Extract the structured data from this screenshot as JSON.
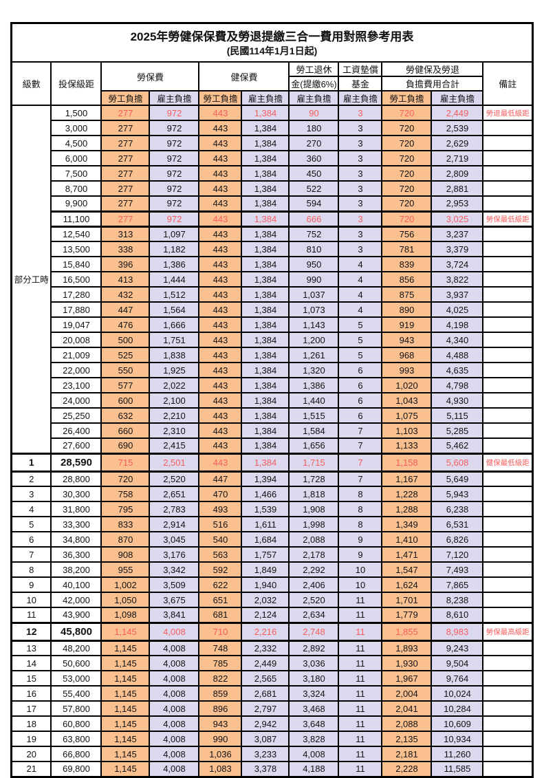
{
  "title": "2025年勞健保保費及勞退提繳三合一費用對照參考用表",
  "subtitle": "(民國114年1月1日起)",
  "colors": {
    "employee_column_bg": "#FAC090",
    "employer_column_bg": "#DCD8EE",
    "highlight_text": "#F75D5D",
    "grid": "#000000"
  },
  "header": {
    "col_level": "級數",
    "col_bracket": "投保級距",
    "group_labor": "勞保費",
    "group_health": "健保費",
    "group_pension_l1": "勞工退休",
    "group_pension_l2": "金(提繳6%)",
    "group_wage_fund_l1": "工資墊償",
    "group_wage_fund_l2": "基金",
    "group_total_l1": "勞健保及勞退",
    "group_total_l2": "負擔費用合計",
    "col_remark": "備註",
    "sub_employee": "勞工負擔",
    "sub_employer": "雇主負擔"
  },
  "part_time": {
    "label": "部分工時",
    "row_count": 23
  },
  "rows": [
    {
      "bracket": "1,500",
      "values": [
        "277",
        "972",
        "443",
        "1,384",
        "90",
        "3",
        "720",
        "2,449"
      ],
      "remark": "勞退最低級距",
      "red": true
    },
    {
      "bracket": "3,000",
      "values": [
        "277",
        "972",
        "443",
        "1,384",
        "180",
        "3",
        "720",
        "2,539"
      ]
    },
    {
      "bracket": "4,500",
      "values": [
        "277",
        "972",
        "443",
        "1,384",
        "270",
        "3",
        "720",
        "2,629"
      ]
    },
    {
      "bracket": "6,000",
      "values": [
        "277",
        "972",
        "443",
        "1,384",
        "360",
        "3",
        "720",
        "2,719"
      ]
    },
    {
      "bracket": "7,500",
      "values": [
        "277",
        "972",
        "443",
        "1,384",
        "450",
        "3",
        "720",
        "2,809"
      ]
    },
    {
      "bracket": "8,700",
      "values": [
        "277",
        "972",
        "443",
        "1,384",
        "522",
        "3",
        "720",
        "2,881"
      ]
    },
    {
      "bracket": "9,900",
      "values": [
        "277",
        "972",
        "443",
        "1,384",
        "594",
        "3",
        "720",
        "2,953"
      ]
    },
    {
      "bracket": "11,100",
      "values": [
        "277",
        "972",
        "443",
        "1,384",
        "666",
        "3",
        "720",
        "3,025"
      ],
      "remark": "勞保最低級距",
      "red": true,
      "thick": true
    },
    {
      "bracket": "12,540",
      "values": [
        "313",
        "1,097",
        "443",
        "1,384",
        "752",
        "3",
        "756",
        "3,237"
      ]
    },
    {
      "bracket": "13,500",
      "values": [
        "338",
        "1,182",
        "443",
        "1,384",
        "810",
        "3",
        "781",
        "3,379"
      ]
    },
    {
      "bracket": "15,840",
      "values": [
        "396",
        "1,386",
        "443",
        "1,384",
        "950",
        "4",
        "839",
        "3,724"
      ]
    },
    {
      "bracket": "16,500",
      "values": [
        "413",
        "1,444",
        "443",
        "1,384",
        "990",
        "4",
        "856",
        "3,822"
      ]
    },
    {
      "bracket": "17,280",
      "values": [
        "432",
        "1,512",
        "443",
        "1,384",
        "1,037",
        "4",
        "875",
        "3,937"
      ]
    },
    {
      "bracket": "17,880",
      "values": [
        "447",
        "1,564",
        "443",
        "1,384",
        "1,073",
        "4",
        "890",
        "4,025"
      ]
    },
    {
      "bracket": "19,047",
      "values": [
        "476",
        "1,666",
        "443",
        "1,384",
        "1,143",
        "5",
        "919",
        "4,198"
      ]
    },
    {
      "bracket": "20,008",
      "values": [
        "500",
        "1,751",
        "443",
        "1,384",
        "1,200",
        "5",
        "943",
        "4,340"
      ]
    },
    {
      "bracket": "21,009",
      "values": [
        "525",
        "1,838",
        "443",
        "1,384",
        "1,261",
        "5",
        "968",
        "4,488"
      ]
    },
    {
      "bracket": "22,000",
      "values": [
        "550",
        "1,925",
        "443",
        "1,384",
        "1,320",
        "6",
        "993",
        "4,635"
      ]
    },
    {
      "bracket": "23,100",
      "values": [
        "577",
        "2,022",
        "443",
        "1,384",
        "1,386",
        "6",
        "1,020",
        "4,798"
      ]
    },
    {
      "bracket": "24,000",
      "values": [
        "600",
        "2,100",
        "443",
        "1,384",
        "1,440",
        "6",
        "1,043",
        "4,930"
      ]
    },
    {
      "bracket": "25,250",
      "values": [
        "632",
        "2,210",
        "443",
        "1,384",
        "1,515",
        "6",
        "1,075",
        "5,115"
      ]
    },
    {
      "bracket": "26,400",
      "values": [
        "660",
        "2,310",
        "443",
        "1,384",
        "1,584",
        "7",
        "1,103",
        "5,285"
      ]
    },
    {
      "bracket": "27,600",
      "values": [
        "690",
        "2,415",
        "443",
        "1,384",
        "1,656",
        "7",
        "1,133",
        "5,462"
      ]
    },
    {
      "level": "1",
      "bracket": "28,590",
      "values": [
        "715",
        "2,501",
        "443",
        "1,384",
        "1,715",
        "7",
        "1,158",
        "5,608"
      ],
      "remark": "健保最低級距",
      "red": true,
      "thick": true,
      "bold": true
    },
    {
      "level": "2",
      "bracket": "28,800",
      "values": [
        "720",
        "2,520",
        "447",
        "1,394",
        "1,728",
        "7",
        "1,167",
        "5,649"
      ]
    },
    {
      "level": "3",
      "bracket": "30,300",
      "values": [
        "758",
        "2,651",
        "470",
        "1,466",
        "1,818",
        "8",
        "1,228",
        "5,943"
      ]
    },
    {
      "level": "4",
      "bracket": "31,800",
      "values": [
        "795",
        "2,783",
        "493",
        "1,539",
        "1,908",
        "8",
        "1,288",
        "6,238"
      ]
    },
    {
      "level": "5",
      "bracket": "33,300",
      "values": [
        "833",
        "2,914",
        "516",
        "1,611",
        "1,998",
        "8",
        "1,349",
        "6,531"
      ]
    },
    {
      "level": "6",
      "bracket": "34,800",
      "values": [
        "870",
        "3,045",
        "540",
        "1,684",
        "2,088",
        "9",
        "1,410",
        "6,826"
      ]
    },
    {
      "level": "7",
      "bracket": "36,300",
      "values": [
        "908",
        "3,176",
        "563",
        "1,757",
        "2,178",
        "9",
        "1,471",
        "7,120"
      ]
    },
    {
      "level": "8",
      "bracket": "38,200",
      "values": [
        "955",
        "3,342",
        "592",
        "1,849",
        "2,292",
        "10",
        "1,547",
        "7,493"
      ]
    },
    {
      "level": "9",
      "bracket": "40,100",
      "values": [
        "1,002",
        "3,509",
        "622",
        "1,940",
        "2,406",
        "10",
        "1,624",
        "7,865"
      ]
    },
    {
      "level": "10",
      "bracket": "42,000",
      "values": [
        "1,050",
        "3,675",
        "651",
        "2,032",
        "2,520",
        "11",
        "1,701",
        "8,238"
      ]
    },
    {
      "level": "11",
      "bracket": "43,900",
      "values": [
        "1,098",
        "3,841",
        "681",
        "2,124",
        "2,634",
        "11",
        "1,779",
        "8,610"
      ]
    },
    {
      "level": "12",
      "bracket": "45,800",
      "values": [
        "1,145",
        "4,008",
        "710",
        "2,216",
        "2,748",
        "11",
        "1,855",
        "8,983"
      ],
      "remark": "勞保最高級距",
      "red": true,
      "thick": true,
      "bold": true
    },
    {
      "level": "13",
      "bracket": "48,200",
      "values": [
        "1,145",
        "4,008",
        "748",
        "2,332",
        "2,892",
        "11",
        "1,893",
        "9,243"
      ]
    },
    {
      "level": "14",
      "bracket": "50,600",
      "values": [
        "1,145",
        "4,008",
        "785",
        "2,449",
        "3,036",
        "11",
        "1,930",
        "9,504"
      ]
    },
    {
      "level": "15",
      "bracket": "53,000",
      "values": [
        "1,145",
        "4,008",
        "822",
        "2,565",
        "3,180",
        "11",
        "1,967",
        "9,764"
      ]
    },
    {
      "level": "16",
      "bracket": "55,400",
      "values": [
        "1,145",
        "4,008",
        "859",
        "2,681",
        "3,324",
        "11",
        "2,004",
        "10,024"
      ]
    },
    {
      "level": "17",
      "bracket": "57,800",
      "values": [
        "1,145",
        "4,008",
        "896",
        "2,797",
        "3,468",
        "11",
        "2,041",
        "10,284"
      ]
    },
    {
      "level": "18",
      "bracket": "60,800",
      "values": [
        "1,145",
        "4,008",
        "943",
        "2,942",
        "3,648",
        "11",
        "2,088",
        "10,609"
      ]
    },
    {
      "level": "19",
      "bracket": "63,800",
      "values": [
        "1,145",
        "4,008",
        "990",
        "3,087",
        "3,828",
        "11",
        "2,135",
        "10,934"
      ]
    },
    {
      "level": "20",
      "bracket": "66,800",
      "values": [
        "1,145",
        "4,008",
        "1,036",
        "3,233",
        "4,008",
        "11",
        "2,181",
        "11,260"
      ]
    },
    {
      "level": "21",
      "bracket": "69,800",
      "values": [
        "1,145",
        "4,008",
        "1,083",
        "3,378",
        "4,188",
        "11",
        "2,228",
        "11,585"
      ]
    }
  ]
}
